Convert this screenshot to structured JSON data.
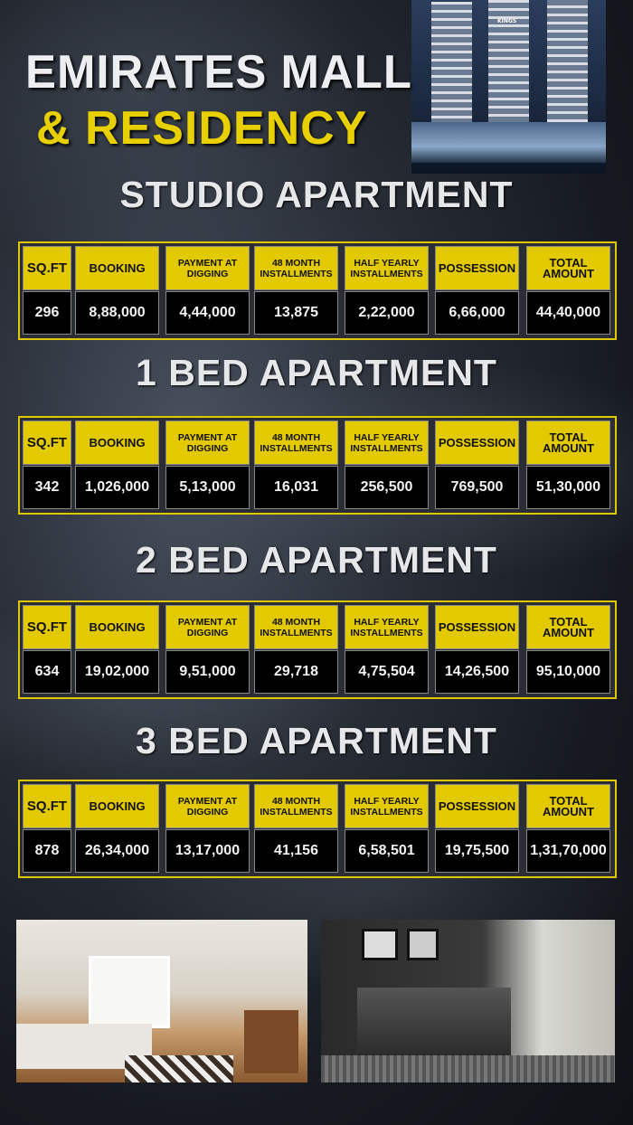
{
  "title": {
    "line1": "EMIRATES MALL",
    "line2": "& RESIDENCY"
  },
  "building_sign": "KINGS",
  "colors": {
    "accent": "#e3c900",
    "cell_bg": "#000000",
    "heading": "#e6e7e9"
  },
  "columns": [
    "SQ.FT",
    "BOOKING",
    "PAYMENT AT DIGGING",
    "48 MONTH INSTALLMENTS",
    "HALF YEARLY INSTALLMENTS",
    "POSSESSION",
    "TOTAL AMOUNT"
  ],
  "sections": [
    {
      "heading": "STUDIO APARTMENT",
      "values": [
        "296",
        "8,88,000",
        "4,44,000",
        "13,875",
        "2,22,000",
        "6,66,000",
        "44,40,000"
      ]
    },
    {
      "heading": "1 BED APARTMENT",
      "values": [
        "342",
        "1,026,000",
        "5,13,000",
        "16,031",
        "256,500",
        "769,500",
        "51,30,000"
      ]
    },
    {
      "heading": "2 BED APARTMENT",
      "values": [
        "634",
        "19,02,000",
        "9,51,000",
        "29,718",
        "4,75,504",
        "14,26,500",
        "95,10,000"
      ]
    },
    {
      "heading": "3 BED APARTMENT",
      "values": [
        "878",
        "26,34,000",
        "13,17,000",
        "41,156",
        "6,58,501",
        "19,75,500",
        "1,31,70,000"
      ]
    }
  ],
  "photos": [
    "living-room-photo",
    "bedroom-photo"
  ]
}
